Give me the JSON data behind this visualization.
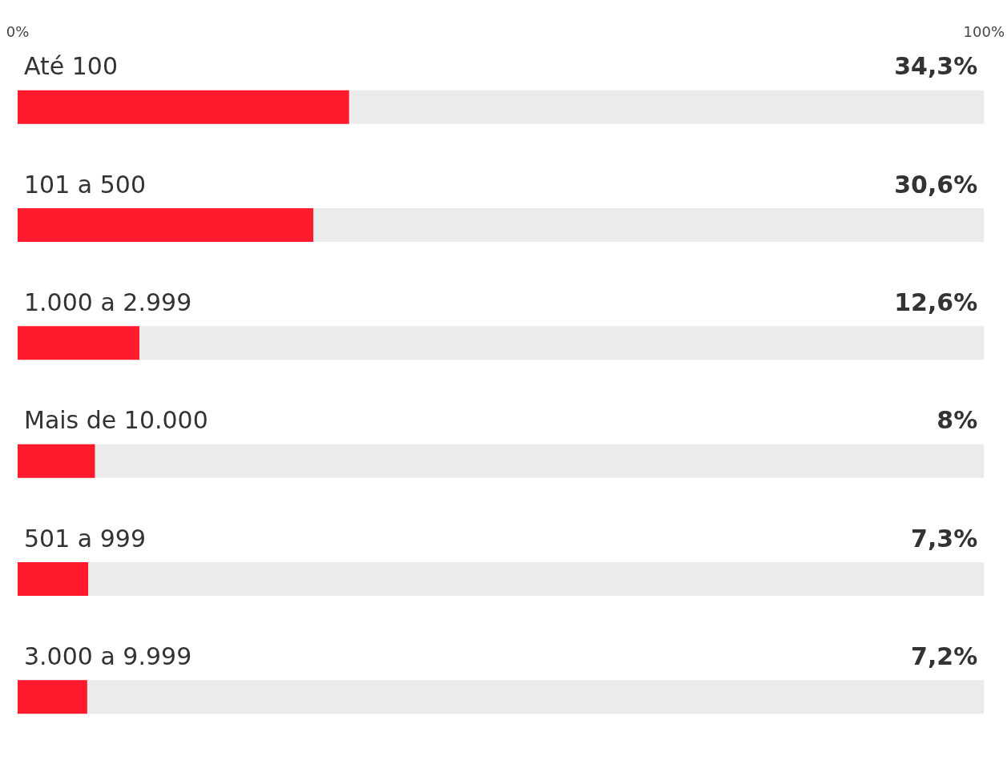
{
  "chart_data": {
    "type": "bar",
    "orientation": "horizontal",
    "categories": [
      "Até 100",
      "101 a 500",
      "1.000 a 2.999",
      "Mais de 10.000",
      "501 a 999",
      "3.000 a 9.999"
    ],
    "values": [
      34.3,
      30.6,
      12.6,
      8,
      7.3,
      7.2
    ],
    "value_labels": [
      "34,3%",
      "30,6%",
      "12,6%",
      "8%",
      "7,3%",
      "7,2%"
    ],
    "color": "#ff1a2e",
    "xlim": [
      0,
      100
    ],
    "xticks": [
      {
        "value": 0,
        "label": "0%"
      },
      {
        "value": 100,
        "label": "100%"
      }
    ],
    "grid": false
  }
}
